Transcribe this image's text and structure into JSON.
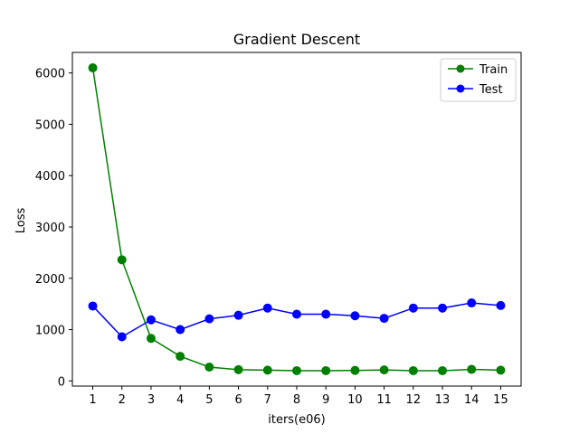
{
  "chart_data": {
    "type": "line",
    "title": "Gradient Descent",
    "xlabel": "iters(e06)",
    "ylabel": "Loss",
    "x": [
      1,
      2,
      3,
      4,
      5,
      6,
      7,
      8,
      9,
      10,
      11,
      12,
      13,
      14,
      15
    ],
    "xlim": [
      0.3,
      15.7
    ],
    "ylim": [
      -100,
      6400
    ],
    "yticks": [
      0,
      1000,
      2000,
      3000,
      4000,
      5000,
      6000
    ],
    "grid": false,
    "legend_position": "top-right",
    "series": [
      {
        "name": "Train",
        "color": "#008000",
        "marker": "circle",
        "values": [
          6100,
          2360,
          830,
          480,
          270,
          220,
          210,
          200,
          200,
          205,
          215,
          200,
          200,
          225,
          210
        ]
      },
      {
        "name": "Test",
        "color": "#0000ff",
        "marker": "circle",
        "values": [
          1460,
          860,
          1190,
          1000,
          1210,
          1280,
          1420,
          1300,
          1300,
          1270,
          1220,
          1420,
          1420,
          1520,
          1470
        ]
      }
    ]
  }
}
